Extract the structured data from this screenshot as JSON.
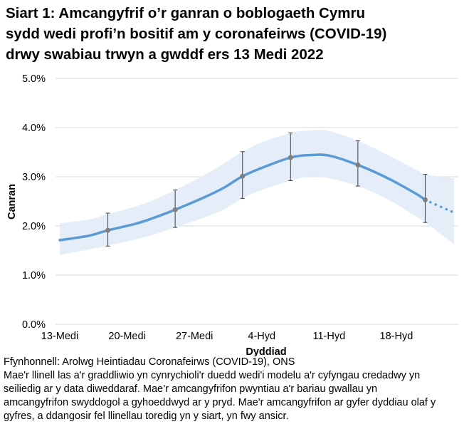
{
  "title_lines": [
    "Siart 1: Amcangyfrif o’r ganran o boblogaeth Cymru",
    "sydd wedi profi’n bositif am y coronafeirws (COVID-19)",
    "drwy swabiau trwyn a gwddf ers 13 Medi 2022"
  ],
  "source": "Ffynhonnell: Arolwg Heintiadau Coronafeirws (COVID-19), ONS",
  "note_lines": [
    "Mae'r llinell las a'r graddliwio yn cynrychioli'r duedd wedi'i modelu a'r cyfyngau credadwy yn",
    "seiliedig ar y data diweddaraf. Mae’r amcangyfrifon pwyntiau a'r bariau gwallau yn",
    "amcangyfrifon swyddogol a gyhoeddwyd ar y pryd. Mae'r amcangyfrifon ar gyfer dyddiau olaf y",
    "gyfres, a ddangosir fel llinellau toredig yn y siart, yn fwy ansicr."
  ],
  "colors": {
    "line": "#5B9BD5",
    "band": "#E4EDF8",
    "point": "#7F7F7F",
    "errorbar": "#404040",
    "grid": "#D9D9D9"
  },
  "chart_data": {
    "type": "line",
    "xlabel": "Dyddiad",
    "ylabel": "Canran",
    "ylim": [
      0,
      5
    ],
    "yticks": [
      "0.0%",
      "1.0%",
      "2.0%",
      "3.0%",
      "4.0%",
      "5.0%"
    ],
    "xticks": [
      {
        "date": "2022-09-13",
        "label": "13-Medi"
      },
      {
        "date": "2022-09-20",
        "label": "20-Medi"
      },
      {
        "date": "2022-09-27",
        "label": "27-Medi"
      },
      {
        "date": "2022-10-04",
        "label": "4-Hyd"
      },
      {
        "date": "2022-10-11",
        "label": "11-Hyd"
      },
      {
        "date": "2022-10-18",
        "label": "18-Hyd"
      }
    ],
    "xlim": [
      "2022-09-13",
      "2022-10-24"
    ],
    "grid": true,
    "modelled_trend": [
      {
        "date": "2022-09-13",
        "value": 1.71,
        "lower": 1.41,
        "upper": 2.05
      },
      {
        "date": "2022-09-16",
        "value": 1.8,
        "lower": 1.52,
        "upper": 2.13
      },
      {
        "date": "2022-09-18",
        "value": 1.91,
        "lower": 1.6,
        "upper": 2.24
      },
      {
        "date": "2022-09-21",
        "value": 2.05,
        "lower": 1.73,
        "upper": 2.4
      },
      {
        "date": "2022-09-23",
        "value": 2.18,
        "lower": 1.84,
        "upper": 2.55
      },
      {
        "date": "2022-09-25",
        "value": 2.33,
        "lower": 1.97,
        "upper": 2.73
      },
      {
        "date": "2022-09-28",
        "value": 2.58,
        "lower": 2.17,
        "upper": 3.03
      },
      {
        "date": "2022-09-30",
        "value": 2.77,
        "lower": 2.33,
        "upper": 3.26
      },
      {
        "date": "2022-10-02",
        "value": 3.01,
        "lower": 2.56,
        "upper": 3.51
      },
      {
        "date": "2022-10-04",
        "value": 3.18,
        "lower": 2.73,
        "upper": 3.7
      },
      {
        "date": "2022-10-07",
        "value": 3.39,
        "lower": 2.92,
        "upper": 3.89
      },
      {
        "date": "2022-10-09",
        "value": 3.44,
        "lower": 3.0,
        "upper": 3.94
      },
      {
        "date": "2022-10-11",
        "value": 3.43,
        "lower": 2.97,
        "upper": 3.93
      },
      {
        "date": "2022-10-14",
        "value": 3.24,
        "lower": 2.81,
        "upper": 3.73
      },
      {
        "date": "2022-10-17",
        "value": 2.98,
        "lower": 2.55,
        "upper": 3.45
      },
      {
        "date": "2022-10-20",
        "value": 2.66,
        "lower": 2.2,
        "upper": 3.15
      },
      {
        "date": "2022-10-21",
        "value": 2.53,
        "lower": 2.07,
        "upper": 3.05
      },
      {
        "date": "2022-10-24",
        "value": 2.27,
        "lower": 1.63,
        "upper": 2.97
      }
    ],
    "dotted_from": "2022-10-21",
    "official_estimates": [
      {
        "date": "2022-09-18",
        "value": 1.91,
        "lower": 1.59,
        "upper": 2.26
      },
      {
        "date": "2022-09-25",
        "value": 2.33,
        "lower": 1.97,
        "upper": 2.73
      },
      {
        "date": "2022-10-02",
        "value": 3.01,
        "lower": 2.56,
        "upper": 3.51
      },
      {
        "date": "2022-10-07",
        "value": 3.39,
        "lower": 2.92,
        "upper": 3.89
      },
      {
        "date": "2022-10-14",
        "value": 3.24,
        "lower": 2.81,
        "upper": 3.73
      },
      {
        "date": "2022-10-21",
        "value": 2.53,
        "lower": 2.07,
        "upper": 3.05
      }
    ]
  }
}
